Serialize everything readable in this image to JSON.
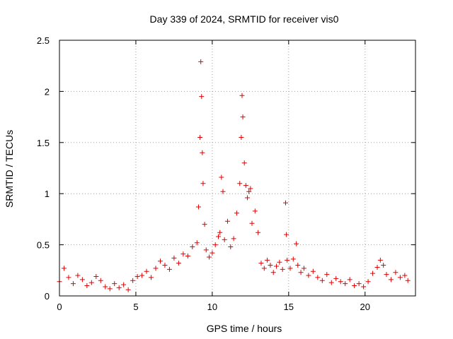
{
  "chart_data": {
    "type": "scatter",
    "title": "Day 339 of 2024, SRMTID for receiver vis0",
    "xlabel": "GPS time / hours",
    "ylabel": "SRMTID / TECUs",
    "xlim": [
      0,
      23.3
    ],
    "ylim": [
      0,
      2.5
    ],
    "xticks": [
      0,
      5,
      10,
      15,
      20
    ],
    "xtick_labels": [
      "0",
      "5",
      "10",
      "15",
      "20"
    ],
    "yticks": [
      0,
      0.5,
      1,
      1.5,
      2,
      2.5
    ],
    "ytick_labels": [
      "0",
      "0.5",
      "1",
      "1.5",
      "2",
      "2.5"
    ],
    "grid": true,
    "marker": "plus",
    "color": "#e00000",
    "series": [
      {
        "name": "vis0",
        "x": [
          0.0,
          0.3,
          0.6,
          0.9,
          1.2,
          1.5,
          1.8,
          2.1,
          2.4,
          2.7,
          3.0,
          3.3,
          3.6,
          3.9,
          4.2,
          4.5,
          4.8,
          5.1,
          5.4,
          5.7,
          6.0,
          6.3,
          6.6,
          6.9,
          7.2,
          7.5,
          7.8,
          8.1,
          8.4,
          8.7,
          9.0,
          9.1,
          9.2,
          9.25,
          9.3,
          9.35,
          9.4,
          9.5,
          9.6,
          9.8,
          10.0,
          10.2,
          10.4,
          10.5,
          10.6,
          10.7,
          10.8,
          11.0,
          11.2,
          11.4,
          11.6,
          11.8,
          11.9,
          11.95,
          12.0,
          12.1,
          12.2,
          12.3,
          12.4,
          12.5,
          12.6,
          12.8,
          13.0,
          13.2,
          13.4,
          13.6,
          13.8,
          14.0,
          14.2,
          14.4,
          14.6,
          14.8,
          14.85,
          14.9,
          15.1,
          15.3,
          15.5,
          15.6,
          15.8,
          16.0,
          16.3,
          16.6,
          16.9,
          17.2,
          17.5,
          17.8,
          18.1,
          18.4,
          18.7,
          19.0,
          19.3,
          19.6,
          19.9,
          20.2,
          20.5,
          20.8,
          21.0,
          21.2,
          21.4,
          21.7,
          22.0,
          22.3,
          22.6,
          22.8
        ],
        "y": [
          0.14,
          0.27,
          0.18,
          0.12,
          0.2,
          0.16,
          0.1,
          0.13,
          0.19,
          0.15,
          0.09,
          0.07,
          0.12,
          0.08,
          0.11,
          0.06,
          0.15,
          0.19,
          0.2,
          0.24,
          0.18,
          0.27,
          0.34,
          0.3,
          0.26,
          0.37,
          0.32,
          0.41,
          0.39,
          0.48,
          0.52,
          0.87,
          1.55,
          2.29,
          1.95,
          1.4,
          1.1,
          0.7,
          0.45,
          0.38,
          0.42,
          0.5,
          0.58,
          0.62,
          1.16,
          1.02,
          0.55,
          0.73,
          0.48,
          0.56,
          0.81,
          1.1,
          1.55,
          1.96,
          1.75,
          1.3,
          1.08,
          0.96,
          1.02,
          1.05,
          0.71,
          0.83,
          0.62,
          0.32,
          0.27,
          0.35,
          0.3,
          0.23,
          0.29,
          0.33,
          0.26,
          0.91,
          0.6,
          0.35,
          0.27,
          0.36,
          0.51,
          0.3,
          0.23,
          0.27,
          0.2,
          0.24,
          0.18,
          0.15,
          0.21,
          0.13,
          0.17,
          0.14,
          0.12,
          0.16,
          0.1,
          0.12,
          0.09,
          0.14,
          0.22,
          0.28,
          0.35,
          0.3,
          0.21,
          0.16,
          0.23,
          0.18,
          0.2,
          0.15
        ]
      }
    ]
  }
}
